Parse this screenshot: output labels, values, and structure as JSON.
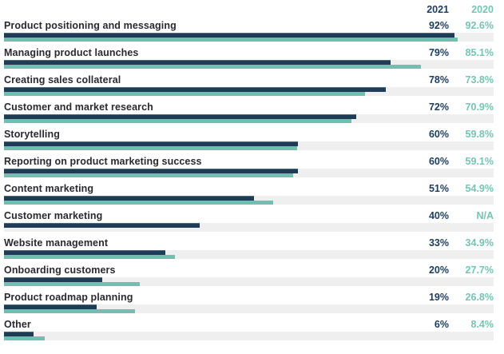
{
  "chart_data": {
    "type": "bar",
    "orientation": "horizontal",
    "title": "",
    "xlabel": "",
    "ylabel": "",
    "xlim": [
      0,
      100
    ],
    "grid": false,
    "legend_position": "top-right-column-headers",
    "column_headers": [
      "2021",
      "2020"
    ],
    "categories": [
      "Product positioning and messaging",
      "Managing product launches",
      "Creating sales collateral",
      "Customer and market research",
      "Storytelling",
      "Reporting on product marketing success",
      "Content marketing",
      "Customer marketing",
      "Website management",
      "Onboarding customers",
      "Product roadmap planning",
      "Other"
    ],
    "series": [
      {
        "name": "2021",
        "color": "#1e3c55",
        "values": [
          92,
          79,
          78,
          72,
          60,
          60,
          51,
          40,
          33,
          20,
          19,
          6
        ]
      },
      {
        "name": "2020",
        "color": "#70c0b1",
        "values": [
          92.6,
          85.1,
          73.8,
          70.9,
          59.8,
          59.1,
          54.9,
          null,
          34.9,
          27.7,
          26.8,
          8.4
        ]
      }
    ],
    "rows": [
      {
        "label": "Product positioning and messaging",
        "v2021": "92%",
        "v2020": "92.6%",
        "p2021": 92,
        "p2020": 92.6
      },
      {
        "label": "Managing product launches",
        "v2021": "79%",
        "v2020": "85.1%",
        "p2021": 79,
        "p2020": 85.1
      },
      {
        "label": "Creating sales collateral",
        "v2021": "78%",
        "v2020": "73.8%",
        "p2021": 78,
        "p2020": 73.8
      },
      {
        "label": "Customer and market research",
        "v2021": "72%",
        "v2020": "70.9%",
        "p2021": 72,
        "p2020": 70.9
      },
      {
        "label": "Storytelling",
        "v2021": "60%",
        "v2020": "59.8%",
        "p2021": 60,
        "p2020": 59.8
      },
      {
        "label": "Reporting on product marketing success",
        "v2021": "60%",
        "v2020": "59.1%",
        "p2021": 60,
        "p2020": 59.1
      },
      {
        "label": "Content marketing",
        "v2021": "51%",
        "v2020": "54.9%",
        "p2021": 51,
        "p2020": 54.9
      },
      {
        "label": "Customer marketing",
        "v2021": "40%",
        "v2020": "N/A",
        "p2021": 40,
        "p2020": null
      },
      {
        "label": "Website management",
        "v2021": "33%",
        "v2020": "34.9%",
        "p2021": 33,
        "p2020": 34.9
      },
      {
        "label": "Onboarding customers",
        "v2021": "20%",
        "v2020": "27.7%",
        "p2021": 20,
        "p2020": 27.7
      },
      {
        "label": "Product roadmap planning",
        "v2021": "19%",
        "v2020": "26.8%",
        "p2021": 19,
        "p2020": 26.8
      },
      {
        "label": "Other",
        "v2021": "6%",
        "v2020": "8.4%",
        "p2021": 6,
        "p2020": 8.4
      }
    ],
    "colors": {
      "bar_2021": "#1e3c55",
      "bar_2020": "#70c0b1",
      "text_2021": "#1c3d5e",
      "text_2020": "#76c4b4",
      "label_text": "#2a2930",
      "track": "#f0efef",
      "background": "#ffffff"
    }
  }
}
